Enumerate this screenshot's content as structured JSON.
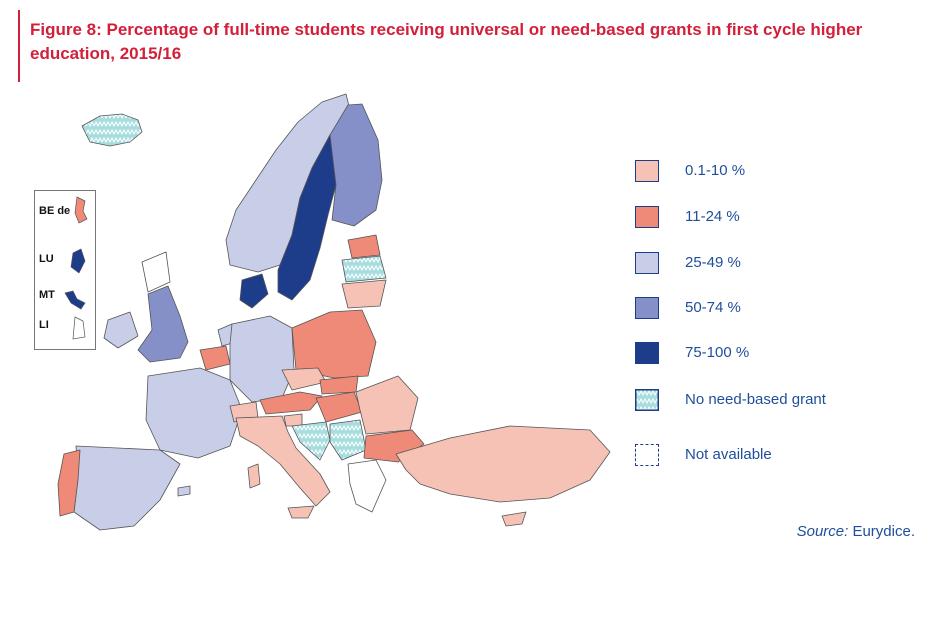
{
  "title": "Figure 8: Percentage of full-time students receiving universal or need-based grants in first cycle higher education, 2015/16",
  "colors": {
    "c1": "#f6c2b6",
    "c2": "#ee8a77",
    "c3": "#c8cde8",
    "c4": "#8590c8",
    "c5": "#1d3c8a",
    "hatch": "#a8dde0",
    "na": "#ffffff",
    "accent": "#d31f3a",
    "text": "#1f4e9a"
  },
  "legend": [
    {
      "label": "0.1-10 %",
      "cls": "c1"
    },
    {
      "label": "11-24 %",
      "cls": "c2"
    },
    {
      "label": "25-49 %",
      "cls": "c3"
    },
    {
      "label": "50-74 %",
      "cls": "c4"
    },
    {
      "label": "75-100 %",
      "cls": "c5"
    },
    {
      "label": "No need-based grant",
      "cls": "hatch"
    },
    {
      "label": "Not available",
      "cls": "na"
    }
  ],
  "insets": {
    "be_de": "BE de",
    "lu": "LU",
    "mt": "MT",
    "li": "LI"
  },
  "source": {
    "prefix": "Source:",
    "text": " Eurydice."
  }
}
